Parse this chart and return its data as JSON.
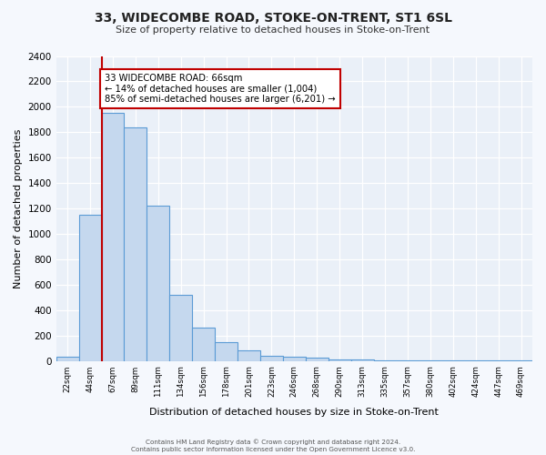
{
  "title": "33, WIDECOMBE ROAD, STOKE-ON-TRENT, ST1 6SL",
  "subtitle": "Size of property relative to detached houses in Stoke-on-Trent",
  "xlabel": "Distribution of detached houses by size in Stoke-on-Trent",
  "ylabel": "Number of detached properties",
  "bin_labels": [
    "22sqm",
    "44sqm",
    "67sqm",
    "89sqm",
    "111sqm",
    "134sqm",
    "156sqm",
    "178sqm",
    "201sqm",
    "223sqm",
    "246sqm",
    "268sqm",
    "290sqm",
    "313sqm",
    "335sqm",
    "357sqm",
    "380sqm",
    "402sqm",
    "424sqm",
    "447sqm",
    "469sqm"
  ],
  "bar_values": [
    30,
    1150,
    1950,
    1840,
    1220,
    520,
    265,
    150,
    80,
    40,
    35,
    25,
    15,
    10,
    5,
    3,
    2,
    2,
    2,
    2,
    2
  ],
  "bar_color": "#c5d8ee",
  "bar_edge_color": "#5b9bd5",
  "marker_line_color": "#c00000",
  "marker_bin_index": 2,
  "annotation_title": "33 WIDECOMBE ROAD: 66sqm",
  "annotation_line1": "← 14% of detached houses are smaller (1,004)",
  "annotation_line2": "85% of semi-detached houses are larger (6,201) →",
  "annotation_box_facecolor": "#ffffff",
  "annotation_box_edgecolor": "#c00000",
  "ylim": [
    0,
    2400
  ],
  "yticks": [
    0,
    200,
    400,
    600,
    800,
    1000,
    1200,
    1400,
    1600,
    1800,
    2000,
    2200,
    2400
  ],
  "footer1": "Contains HM Land Registry data © Crown copyright and database right 2024.",
  "footer2": "Contains public sector information licensed under the Open Government Licence v3.0.",
  "fig_bg_color": "#f5f8fd",
  "plot_bg_color": "#eaf0f8"
}
